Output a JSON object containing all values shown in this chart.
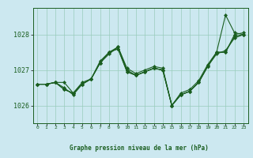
{
  "title": "Graphe pression niveau de la mer (hPa)",
  "background_color": "#cce8f0",
  "grid_color": "#99ccbb",
  "line_color": "#1a5e20",
  "text_color": "#1a5e20",
  "xlim": [
    -0.5,
    23.5
  ],
  "ylim": [
    1025.5,
    1028.75
  ],
  "yticks": [
    1026,
    1027,
    1028
  ],
  "xticks": [
    0,
    1,
    2,
    3,
    4,
    5,
    6,
    7,
    8,
    9,
    10,
    11,
    12,
    13,
    14,
    15,
    16,
    17,
    18,
    19,
    20,
    21,
    22,
    23
  ],
  "series": [
    [
      1026.6,
      1026.6,
      1026.65,
      1026.65,
      1026.35,
      1026.65,
      1026.75,
      1027.25,
      1027.5,
      1027.65,
      1027.05,
      1026.9,
      1027.0,
      1027.1,
      1027.05,
      1026.0,
      1026.35,
      1026.45,
      1026.7,
      1027.15,
      1027.5,
      1027.5,
      1028.0,
      1028.05
    ],
    [
      1026.6,
      1026.6,
      1026.65,
      1026.5,
      1026.3,
      1026.6,
      1026.75,
      1027.2,
      1027.45,
      1027.65,
      1027.0,
      1026.85,
      1026.95,
      1027.05,
      1027.0,
      1026.0,
      1026.3,
      1026.4,
      1026.65,
      1027.1,
      1027.45,
      1027.55,
      1027.9,
      1028.0
    ],
    [
      1026.6,
      1026.6,
      1026.65,
      1026.45,
      1026.35,
      1026.6,
      1026.75,
      1027.2,
      1027.5,
      1027.6,
      1026.95,
      1026.85,
      1026.95,
      1027.05,
      1027.0,
      1026.0,
      1026.3,
      1026.4,
      1026.65,
      1027.1,
      1027.5,
      1028.55,
      1028.05,
      1028.0
    ],
    [
      1026.6,
      1026.6,
      1026.65,
      1026.45,
      1026.35,
      1026.6,
      1026.75,
      1027.2,
      1027.5,
      1027.6,
      1026.95,
      1026.85,
      1026.95,
      1027.05,
      1027.0,
      1026.0,
      1026.3,
      1026.4,
      1026.65,
      1027.1,
      1027.5,
      1027.5,
      1027.95,
      1028.0
    ]
  ]
}
